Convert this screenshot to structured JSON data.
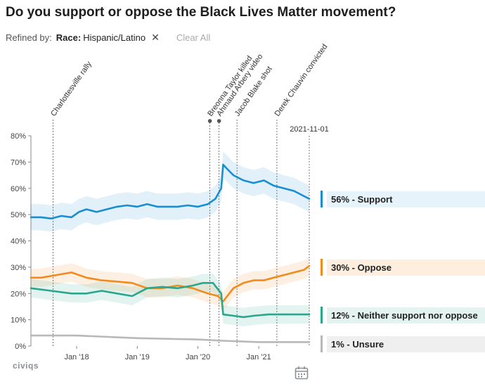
{
  "title": "Do you support or oppose the Black Lives Matter movement?",
  "refined": {
    "label": "Refined by:",
    "key": "Race:",
    "value": "Hispanic/Latino",
    "clear": "Clear All"
  },
  "brand": "civiqs",
  "colors": {
    "support": "#1a8ed1",
    "oppose": "#f28a1c",
    "neither": "#2aa68c",
    "unsure": "#b8b8b8"
  },
  "icons": {
    "remove": "close-icon",
    "calendar": "calendar-icon"
  },
  "chart_data": {
    "type": "line",
    "title": "Do you support or oppose the Black Lives Matter movement?",
    "xlabel": "",
    "ylabel": "",
    "x_ticks": [
      "Jan '18",
      "Jan '19",
      "Jan '20",
      "Jan '21"
    ],
    "y_ticks": [
      "0%",
      "10%",
      "20%",
      "30%",
      "40%",
      "50%",
      "60%",
      "70%",
      "80%"
    ],
    "ylim": [
      0,
      80
    ],
    "xlim": [
      "2017-04-01",
      "2021-11-01"
    ],
    "current_date": "2021-11-01",
    "grid": false,
    "legend_position": "right",
    "events": [
      {
        "date": "2017-08-12",
        "label": "Charlottesville rally"
      },
      {
        "date": "2020-03-13",
        "label": "Breonna Taylor killed"
      },
      {
        "date": "2020-05-07",
        "label": "Ahmaud Arbery video"
      },
      {
        "date": "2020-08-23",
        "label": "Jacob Blake shot"
      },
      {
        "date": "2021-04-20",
        "label": "Derek Chauvin convicted"
      }
    ],
    "series": [
      {
        "name": "Support",
        "label": "56% - Support",
        "final": 56,
        "points": [
          [
            "2017-04-01",
            49
          ],
          [
            "2017-06-01",
            49
          ],
          [
            "2017-08-01",
            48.5
          ],
          [
            "2017-10-01",
            49.5
          ],
          [
            "2017-12-01",
            49
          ],
          [
            "2018-01-15",
            51
          ],
          [
            "2018-03-01",
            52
          ],
          [
            "2018-05-01",
            51
          ],
          [
            "2018-07-01",
            52
          ],
          [
            "2018-09-01",
            53
          ],
          [
            "2018-11-01",
            53.5
          ],
          [
            "2019-01-01",
            53
          ],
          [
            "2019-03-01",
            54
          ],
          [
            "2019-05-01",
            53
          ],
          [
            "2019-07-01",
            53
          ],
          [
            "2019-09-01",
            53
          ],
          [
            "2019-11-01",
            53.5
          ],
          [
            "2020-01-01",
            53
          ],
          [
            "2020-03-01",
            54
          ],
          [
            "2020-04-15",
            56
          ],
          [
            "2020-05-20",
            60
          ],
          [
            "2020-06-01",
            69
          ],
          [
            "2020-07-01",
            67
          ],
          [
            "2020-08-01",
            65
          ],
          [
            "2020-10-01",
            63
          ],
          [
            "2020-12-01",
            62
          ],
          [
            "2021-02-01",
            63
          ],
          [
            "2021-04-01",
            61
          ],
          [
            "2021-06-01",
            60
          ],
          [
            "2021-08-01",
            59
          ],
          [
            "2021-10-01",
            57
          ],
          [
            "2021-11-01",
            56
          ]
        ]
      },
      {
        "name": "Oppose",
        "label": "30% - Oppose",
        "final": 30,
        "points": [
          [
            "2017-04-01",
            26
          ],
          [
            "2017-06-01",
            26
          ],
          [
            "2017-09-01",
            27
          ],
          [
            "2017-12-01",
            28
          ],
          [
            "2018-03-01",
            26
          ],
          [
            "2018-06-01",
            25
          ],
          [
            "2018-09-01",
            24.5
          ],
          [
            "2018-12-01",
            24
          ],
          [
            "2019-03-01",
            22
          ],
          [
            "2019-06-01",
            22
          ],
          [
            "2019-09-01",
            23
          ],
          [
            "2019-12-01",
            22
          ],
          [
            "2020-03-01",
            20
          ],
          [
            "2020-05-01",
            19
          ],
          [
            "2020-06-01",
            17
          ],
          [
            "2020-08-01",
            22
          ],
          [
            "2020-10-01",
            24
          ],
          [
            "2020-12-01",
            25
          ],
          [
            "2021-02-01",
            25
          ],
          [
            "2021-04-01",
            26
          ],
          [
            "2021-06-01",
            27
          ],
          [
            "2021-08-01",
            28
          ],
          [
            "2021-10-01",
            29
          ],
          [
            "2021-11-01",
            30.5
          ]
        ]
      },
      {
        "name": "Neither support nor oppose",
        "label": "12% - Neither support nor oppose",
        "final": 12,
        "points": [
          [
            "2017-04-01",
            22
          ],
          [
            "2017-08-01",
            21
          ],
          [
            "2017-12-01",
            20
          ],
          [
            "2018-03-01",
            20
          ],
          [
            "2018-06-01",
            21
          ],
          [
            "2018-09-01",
            20
          ],
          [
            "2018-12-01",
            19
          ],
          [
            "2019-03-01",
            22
          ],
          [
            "2019-06-01",
            22.5
          ],
          [
            "2019-09-01",
            22
          ],
          [
            "2019-12-01",
            23
          ],
          [
            "2020-02-01",
            24
          ],
          [
            "2020-04-01",
            24
          ],
          [
            "2020-05-20",
            20
          ],
          [
            "2020-06-01",
            12
          ],
          [
            "2020-08-01",
            11.5
          ],
          [
            "2020-10-01",
            11
          ],
          [
            "2020-12-01",
            11.5
          ],
          [
            "2021-03-01",
            12
          ],
          [
            "2021-06-01",
            12
          ],
          [
            "2021-09-01",
            12
          ],
          [
            "2021-11-01",
            12
          ]
        ]
      },
      {
        "name": "Unsure",
        "label": "1% - Unsure",
        "final": 1,
        "points": [
          [
            "2017-04-01",
            4
          ],
          [
            "2018-01-01",
            4
          ],
          [
            "2019-01-01",
            3
          ],
          [
            "2020-01-01",
            2.5
          ],
          [
            "2020-06-01",
            2
          ],
          [
            "2021-01-01",
            1.5
          ],
          [
            "2021-11-01",
            1.5
          ]
        ]
      }
    ]
  }
}
